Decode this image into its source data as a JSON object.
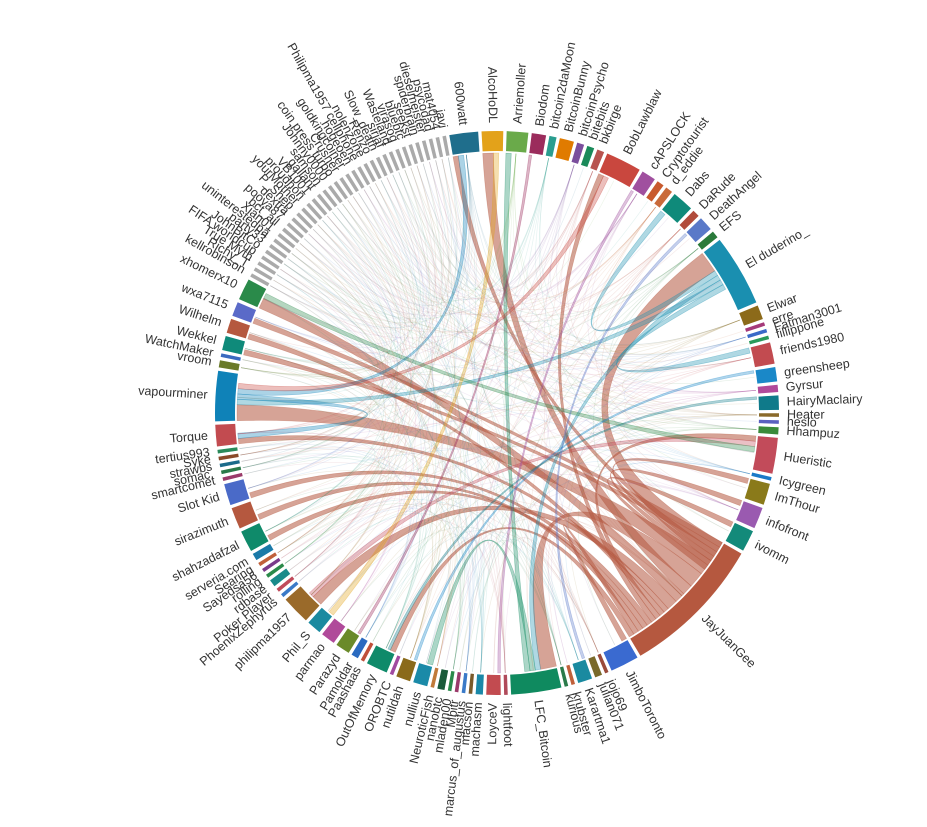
{
  "chart_data": {
    "type": "chord",
    "nodes": [
      {
        "name": "600watt",
        "weight": 4,
        "color": "#1f6e8c"
      },
      {
        "name": "AlcoHoDL",
        "weight": 3,
        "color": "#e3a21a"
      },
      {
        "name": "Arriemoller",
        "weight": 3,
        "color": "#6aaa4a"
      },
      {
        "name": "Biodom",
        "weight": 2,
        "color": "#9b2c5c"
      },
      {
        "name": "bitcoin2daMoon",
        "weight": 1,
        "color": "#2a9d8f"
      },
      {
        "name": "BitcoinBunny",
        "weight": 2,
        "color": "#e07b00"
      },
      {
        "name": "bitcoinPsycho",
        "weight": 1,
        "color": "#7b4f9d"
      },
      {
        "name": "bitebits",
        "weight": 1,
        "color": "#1a8a5a"
      },
      {
        "name": "bkbirge",
        "weight": 1,
        "color": "#b85450"
      },
      {
        "name": "BobLawblaw",
        "weight": 5,
        "color": "#c9473e"
      },
      {
        "name": "cAPSLOCK",
        "weight": 2,
        "color": "#a0509f"
      },
      {
        "name": "Cryptotourist",
        "weight": 1,
        "color": "#c85a2e"
      },
      {
        "name": "d_eddie",
        "weight": 1,
        "color": "#c96a3a"
      },
      {
        "name": "Dabs",
        "weight": 3,
        "color": "#0f8a7a"
      },
      {
        "name": "DaRude",
        "weight": 1,
        "color": "#b14b3b"
      },
      {
        "name": "DeathAngel",
        "weight": 2,
        "color": "#5a79c8"
      },
      {
        "name": "EFS",
        "weight": 1,
        "color": "#2a7a3a"
      },
      {
        "name": "El duderino_",
        "weight": 10,
        "color": "#1a8fb0"
      },
      {
        "name": "Elwar",
        "weight": 2,
        "color": "#8c6a1a"
      },
      {
        "name": "erre",
        "weight": 0.5,
        "color": "#a53a7a"
      },
      {
        "name": "Fatman3001",
        "weight": 0.5,
        "color": "#3a6ac8"
      },
      {
        "name": "fillippone",
        "weight": 0.5,
        "color": "#2a9a5a"
      },
      {
        "name": "friends1980",
        "weight": 3,
        "color": "#c24b50"
      },
      {
        "name": "greensheep",
        "weight": 2,
        "color": "#1a88c8"
      },
      {
        "name": "Gyrsur",
        "weight": 1,
        "color": "#b04a9a"
      },
      {
        "name": "HairyMaclairy",
        "weight": 2,
        "color": "#0f7a8a"
      },
      {
        "name": "Heater",
        "weight": 0.5,
        "color": "#8a6a2a"
      },
      {
        "name": "heslo",
        "weight": 0.5,
        "color": "#5a60c0"
      },
      {
        "name": "Hhampuz",
        "weight": 1,
        "color": "#3a8a3a"
      },
      {
        "name": "Hueristic",
        "weight": 5,
        "color": "#c24b5a"
      },
      {
        "name": "Icygreen",
        "weight": 0.5,
        "color": "#1a7ac8"
      },
      {
        "name": "ImThour",
        "weight": 3,
        "color": "#8a7a1a"
      },
      {
        "name": "infofront",
        "weight": 3,
        "color": "#9a5ab0"
      },
      {
        "name": "ivomm",
        "weight": 3,
        "color": "#138a7a"
      },
      {
        "name": "JayJuanGee",
        "weight": 20,
        "color": "#b5583f"
      },
      {
        "name": "JimboToronto",
        "weight": 4,
        "color": "#3a6ad0"
      },
      {
        "name": "jojo69",
        "weight": 0.5,
        "color": "#9a4a3a"
      },
      {
        "name": "julian071",
        "weight": 1,
        "color": "#7a6a2a"
      },
      {
        "name": "Karartma1",
        "weight": 2,
        "color": "#1a8aa0"
      },
      {
        "name": "krubster",
        "weight": 0.5,
        "color": "#c0603a"
      },
      {
        "name": "kurious",
        "weight": 0.5,
        "color": "#2a7a4a"
      },
      {
        "name": "LFC_Bitcoin",
        "weight": 7,
        "color": "#0f8a5f"
      },
      {
        "name": "lightfoot",
        "weight": 0.5,
        "color": "#b04a5a"
      },
      {
        "name": "LoyceV",
        "weight": 2,
        "color": "#c24b50"
      },
      {
        "name": "machasm",
        "weight": 1,
        "color": "#1a88a8"
      },
      {
        "name": "macson",
        "weight": 0.5,
        "color": "#7a5a2a"
      },
      {
        "name": "marcus_of_augustus",
        "weight": 0.5,
        "color": "#3a7ac8"
      },
      {
        "name": "Mbitr",
        "weight": 0.5,
        "color": "#9a3a6a"
      },
      {
        "name": "mladen00",
        "weight": 0.5,
        "color": "#2a8a4a"
      },
      {
        "name": "nanobtc",
        "weight": 1,
        "color": "#1a5a3a"
      },
      {
        "name": "NeuroticFish",
        "weight": 0.5,
        "color": "#c07a3a"
      },
      {
        "name": "nullius",
        "weight": 2,
        "color": "#1a8aa8"
      },
      {
        "name": "nutildah",
        "weight": 2,
        "color": "#8a6a1a"
      },
      {
        "name": "OROBTC",
        "weight": 0.5,
        "color": "#a04aa0"
      },
      {
        "name": "OutOfMemory",
        "weight": 3,
        "color": "#0f8a6a"
      },
      {
        "name": "Paashaas",
        "weight": 0.5,
        "color": "#c0503a"
      },
      {
        "name": "Pamoldar",
        "weight": 1,
        "color": "#2a6ac0"
      },
      {
        "name": "Parazyd",
        "weight": 2,
        "color": "#6a8a2a"
      },
      {
        "name": "parmao",
        "weight": 2,
        "color": "#b04a9a"
      },
      {
        "name": "Phil_S",
        "weight": 2,
        "color": "#1a8aa0"
      },
      {
        "name": "philipma1957",
        "weight": 4,
        "color": "#9a6a2a"
      },
      {
        "name": "PhoenixZephyrus",
        "weight": 0.5,
        "color": "#3a7ac8"
      },
      {
        "name": "Poker Player",
        "weight": 0.5,
        "color": "#c04a5a"
      },
      {
        "name": "rdbase",
        "weight": 1,
        "color": "#1a8a8a"
      },
      {
        "name": "rolling",
        "weight": 0.5,
        "color": "#2a8a4a"
      },
      {
        "name": "Sayedsa56",
        "weight": 0.5,
        "color": "#7a3a8a"
      },
      {
        "name": "Searing",
        "weight": 0.5,
        "color": "#c0603a"
      },
      {
        "name": "serveria.com",
        "weight": 1,
        "color": "#1a7aa8"
      },
      {
        "name": "shahzadafzal",
        "weight": 3,
        "color": "#0f8a6a"
      },
      {
        "name": "sirazimuth",
        "weight": 3,
        "color": "#b5583f"
      },
      {
        "name": "Slot Kid",
        "weight": 3,
        "color": "#4a6ac8"
      },
      {
        "name": "smartcomet",
        "weight": 0.5,
        "color": "#9a3a6a"
      },
      {
        "name": "somac.",
        "weight": 0.5,
        "color": "#2a7a4a"
      },
      {
        "name": "strawbs",
        "weight": 0.5,
        "color": "#1a6a8a"
      },
      {
        "name": "Syke",
        "weight": 0.5,
        "color": "#8a4a2a"
      },
      {
        "name": "tertius993",
        "weight": 0.5,
        "color": "#2a8a5a"
      },
      {
        "name": "Torque",
        "weight": 3,
        "color": "#c24b50"
      },
      {
        "name": "vapourminer",
        "weight": 7,
        "color": "#0f82b8"
      },
      {
        "name": "vroom",
        "weight": 1,
        "color": "#6a7a2a"
      },
      {
        "name": "WatchMaker",
        "weight": 0.5,
        "color": "#3a6ac0"
      },
      {
        "name": "Wekkel",
        "weight": 2,
        "color": "#0f8a7a"
      },
      {
        "name": "Wilhelm",
        "weight": 2,
        "color": "#b5583f"
      },
      {
        "name": "wxa7115",
        "weight": 2,
        "color": "#5a6ac8"
      },
      {
        "name": "xhomerx10",
        "weight": 3,
        "color": "#2a8a4a"
      },
      {
        "name": "kellrobinson",
        "weight": 0.5,
        "color": "#aaaaaa"
      },
      {
        "name": "Richy_T",
        "weight": 0.5,
        "color": "#aaaaaa"
      },
      {
        "name": "True Myth",
        "weight": 0.5,
        "color": "#aaaaaa"
      },
      {
        "name": "FIFA worldcup",
        "weight": 0.5,
        "color": "#aaaaaa"
      },
      {
        "name": "JohnBitCo",
        "weight": 0.5,
        "color": "#aaaaaa"
      },
      {
        "name": "party33",
        "weight": 0.5,
        "color": "#aaaaaa"
      },
      {
        "name": "uninterestedpa",
        "weight": 0.5,
        "color": "#aaaaaa"
      },
      {
        "name": "Xian01",
        "weight": 0.5,
        "color": "#aaaaaa"
      },
      {
        "name": "bct_ail",
        "weight": 0.5,
        "color": "#aaaaaa"
      },
      {
        "name": "pooya87",
        "weight": 0.5,
        "color": "#aaaaaa"
      },
      {
        "name": "dextra",
        "weight": 0.5,
        "color": "#aaaaaa"
      },
      {
        "name": "P_Shep",
        "weight": 0.5,
        "color": "#aaaaaa"
      },
      {
        "name": "yourMother",
        "weight": 0.5,
        "color": "#aaaaaa"
      },
      {
        "name": "proudhon",
        "weight": 0.5,
        "color": "#aaaaaa"
      },
      {
        "name": "VB1001",
        "weight": 0.5,
        "color": "#aaaaaa"
      },
      {
        "name": "gallant",
        "weight": 0.5,
        "color": "#aaaaaa"
      },
      {
        "name": "samson",
        "weight": 0.5,
        "color": "#aaaaaa"
      },
      {
        "name": "Johnny0000",
        "weight": 0.5,
        "color": "#aaaaaa"
      },
      {
        "name": "coin press turbo",
        "weight": 0.5,
        "color": "#aaaaaa"
      },
      {
        "name": "Crusher",
        "weight": 0.5,
        "color": "#aaaaaa"
      },
      {
        "name": "goldkingcoiner",
        "weight": 0.5,
        "color": "#aaaaaa"
      },
      {
        "name": "hogeoen",
        "weight": 0.5,
        "color": "#aaaaaa"
      },
      {
        "name": "Philipma1957 cellphone",
        "weight": 0.5,
        "color": "#aaaaaa"
      },
      {
        "name": "nolenzone",
        "weight": 0.5,
        "color": "#aaaaaa"
      },
      {
        "name": "Renzo",
        "weight": 0.5,
        "color": "#aaaaaa"
      },
      {
        "name": "Slow_death",
        "weight": 0.5,
        "color": "#aaaaaa"
      },
      {
        "name": "sirjaf",
        "weight": 0.5,
        "color": "#aaaaaa"
      },
      {
        "name": "Wasteland",
        "weight": 0.5,
        "color": "#aaaaaa"
      },
      {
        "name": "virasog",
        "weight": 0.5,
        "color": "#aaaaaa"
      },
      {
        "name": "bluebtc",
        "weight": 0.5,
        "color": "#aaaaaa"
      },
      {
        "name": "seekst",
        "weight": 0.5,
        "color": "#aaaaaa"
      },
      {
        "name": "spiderbrain",
        "weight": 0.5,
        "color": "#aaaaaa"
      },
      {
        "name": "dieselmeister",
        "weight": 0.5,
        "color": "#aaaaaa"
      },
      {
        "name": "psycodad",
        "weight": 0.5,
        "color": "#aaaaaa"
      },
      {
        "name": "mat4054",
        "weight": 0.5,
        "color": "#aaaaaa"
      },
      {
        "name": "javi",
        "weight": 0.5,
        "color": "#aaaaaa"
      }
    ],
    "links": [
      [
        "JayJuanGee",
        "El duderino_",
        4
      ],
      [
        "JayJuanGee",
        "vapourminer",
        3
      ],
      [
        "JayJuanGee",
        "LFC_Bitcoin",
        3
      ],
      [
        "JayJuanGee",
        "AlcoHoDL",
        2
      ],
      [
        "JayJuanGee",
        "xhomerx10",
        2
      ],
      [
        "JayJuanGee",
        "philipma1957",
        2
      ],
      [
        "JayJuanGee",
        "Torque",
        1
      ],
      [
        "JayJuanGee",
        "Wilhelm",
        1
      ],
      [
        "JayJuanGee",
        "Hueristic",
        1
      ],
      [
        "JayJuanGee",
        "BobLawblaw",
        1
      ],
      [
        "JayJuanGee",
        "Slot Kid",
        1
      ],
      [
        "JayJuanGee",
        "shahzadafzal",
        1
      ],
      [
        "JayJuanGee",
        "sirazimuth",
        1
      ],
      [
        "JayJuanGee",
        "JimboToronto",
        1
      ],
      [
        "JayJuanGee",
        "OutOfMemory",
        1
      ],
      [
        "JayJuanGee",
        "wxa7115",
        1
      ],
      [
        "JayJuanGee",
        "Wekkel",
        1
      ],
      [
        "JayJuanGee",
        "600watt",
        1
      ],
      [
        "JayJuanGee",
        "ImThour",
        1
      ],
      [
        "JayJuanGee",
        "infofront",
        1
      ],
      [
        "JayJuanGee",
        "ivomm",
        1
      ],
      [
        "El duderino_",
        "Dabs",
        1
      ],
      [
        "El duderino_",
        "LFC_Bitcoin",
        1
      ],
      [
        "El duderino_",
        "vapourminer",
        1
      ],
      [
        "El duderino_",
        "friends1980",
        1
      ],
      [
        "vapourminer",
        "Torque",
        1
      ],
      [
        "vapourminer",
        "600watt",
        1
      ],
      [
        "LFC_Bitcoin",
        "nullius",
        1
      ],
      [
        "LFC_Bitcoin",
        "Arriemoller",
        1
      ],
      [
        "Hueristic",
        "philipma1957",
        1
      ],
      [
        "BobLawblaw",
        "vapourminer",
        1
      ],
      [
        "xhomerx10",
        "Hueristic",
        1
      ],
      [
        "AlcoHoDL",
        "Phil_S",
        1
      ],
      [
        "Biodom",
        "Parazyd",
        0.5
      ],
      [
        "cAPSLOCK",
        "LoyceV",
        0.5
      ],
      [
        "greensheep",
        "nutildah",
        0.5
      ],
      [
        "HairyMaclairy",
        "OutOfMemory",
        0.5
      ],
      [
        "DeathAngel",
        "Karartma1",
        0.5
      ]
    ]
  }
}
